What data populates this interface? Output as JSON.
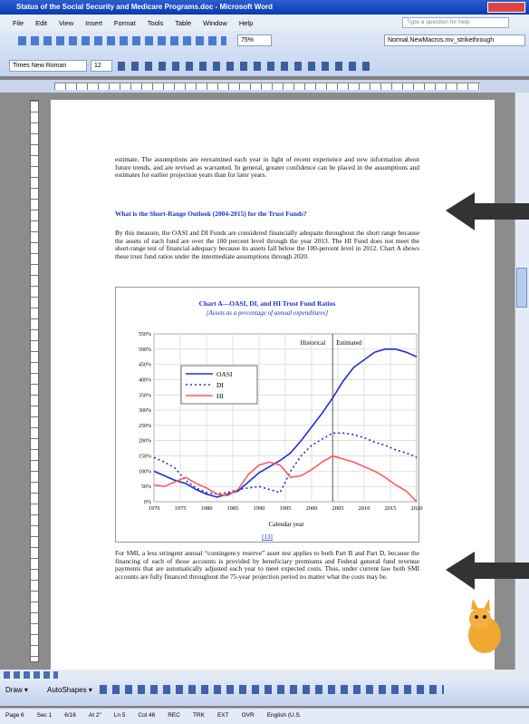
{
  "window": {
    "title": "Status of the Social Security and Medicare Programs.doc - Microsoft Word",
    "menus": [
      "File",
      "Edit",
      "View",
      "Insert",
      "Format",
      "Tools",
      "Table",
      "Window",
      "Help"
    ],
    "help_box": "Type a question for help"
  },
  "toolbar": {
    "zoom": "75%",
    "macro": "Normal.NewMacros.mv_strikethrough",
    "font": "Times New Roman",
    "size": "12"
  },
  "document": {
    "paragraphs": [
      "estimate. The assumptions are reexamined each year in light of recent experience and new information about future trends, and are revised as warranted. In general, greater confidence can be placed in the assumptions and estimates for earlier projection years than for later years.",
      "By this measure, the OASI and DI Funds are considered financially adequate throughout the short range because the assets of each fund are over the 100 percent level through the year 2013. The HI Fund does not meet the short-range test of financial adequacy because its assets fall below the 100-percent level in 2012. Chart A shows these trust fund ratios under the intermediate assumptions through 2020.",
      "For SMI, a less stringent annual “contingency reserve” asset test applies to both Part B and Part D, because the financing of each of those accounts is provided by beneficiary premiums and Federal general fund revenue payments that are automatically adjusted each year to meet expected costs. Thus, under current law both SMI accounts are fully financed throughout the 75-year projection period no matter what the costs may be."
    ],
    "heading": "What is the Short-Range Outlook (2004-2015) for the Trust Funds?",
    "caption": "[13]"
  },
  "chart_data": {
    "type": "line",
    "title": "Chart A—OASI, DI, and HI Trust Fund Ratios",
    "subtitle": "[Assets as a percentage of annual expenditures]",
    "x_label": "Calendar year",
    "x": [
      1970,
      1972,
      1974,
      1976,
      1978,
      1980,
      1982,
      1984,
      1986,
      1988,
      1990,
      1992,
      1994,
      1996,
      1998,
      2000,
      2002,
      2004,
      2006,
      2008,
      2010,
      2012,
      2014,
      2016,
      2018,
      2020
    ],
    "series": [
      {
        "name": "OASI",
        "color": "#1f2fd6",
        "style": "solid",
        "values": [
          100,
          85,
          70,
          60,
          40,
          25,
          15,
          25,
          35,
          65,
          95,
          115,
          135,
          160,
          200,
          245,
          290,
          340,
          395,
          440,
          465,
          490,
          500,
          500,
          490,
          475
        ]
      },
      {
        "name": "DI",
        "color": "#1f2fd6",
        "style": "dotted",
        "values": [
          145,
          130,
          110,
          70,
          45,
          30,
          25,
          30,
          40,
          45,
          50,
          40,
          30,
          100,
          150,
          185,
          205,
          225,
          225,
          220,
          210,
          195,
          185,
          170,
          160,
          145
        ]
      },
      {
        "name": "HI",
        "color": "#ff5a5a",
        "style": "solid",
        "values": [
          55,
          50,
          65,
          80,
          60,
          45,
          25,
          20,
          40,
          90,
          120,
          130,
          120,
          80,
          85,
          105,
          130,
          150,
          140,
          130,
          115,
          100,
          80,
          55,
          35,
          0
        ]
      }
    ],
    "annotations": [
      "Historical",
      "Estimated"
    ],
    "estimate_start": 2004,
    "xlim": [
      1970,
      2020
    ],
    "xticks": [
      1970,
      1975,
      1980,
      1985,
      1990,
      1995,
      2000,
      2005,
      2010,
      2015,
      2020
    ],
    "ylim": [
      0,
      550
    ],
    "yticks": [
      {
        "value": 0,
        "label": "0%"
      },
      {
        "value": 50,
        "label": "50%"
      },
      {
        "value": 100,
        "label": "100%"
      },
      {
        "value": 150,
        "label": "150%"
      },
      {
        "value": 200,
        "label": "200%"
      },
      {
        "value": 250,
        "label": "250%"
      },
      {
        "value": 300,
        "label": "300%"
      },
      {
        "value": 350,
        "label": "350%"
      },
      {
        "value": 400,
        "label": "400%"
      },
      {
        "value": 450,
        "label": "450%"
      },
      {
        "value": 500,
        "label": "500%"
      },
      {
        "value": 550,
        "label": "550%"
      }
    ],
    "grid": true,
    "legend": "upper left"
  },
  "drawing": {
    "draw": "Draw ▾",
    "autoshapes": "AutoShapes ▾"
  },
  "status": [
    "Page 6",
    "Sec 1",
    "6/16",
    "At 2\"",
    "Ln 5",
    "Col 46",
    "REC",
    "TRK",
    "EXT",
    "OVR",
    "English (U.S."
  ]
}
